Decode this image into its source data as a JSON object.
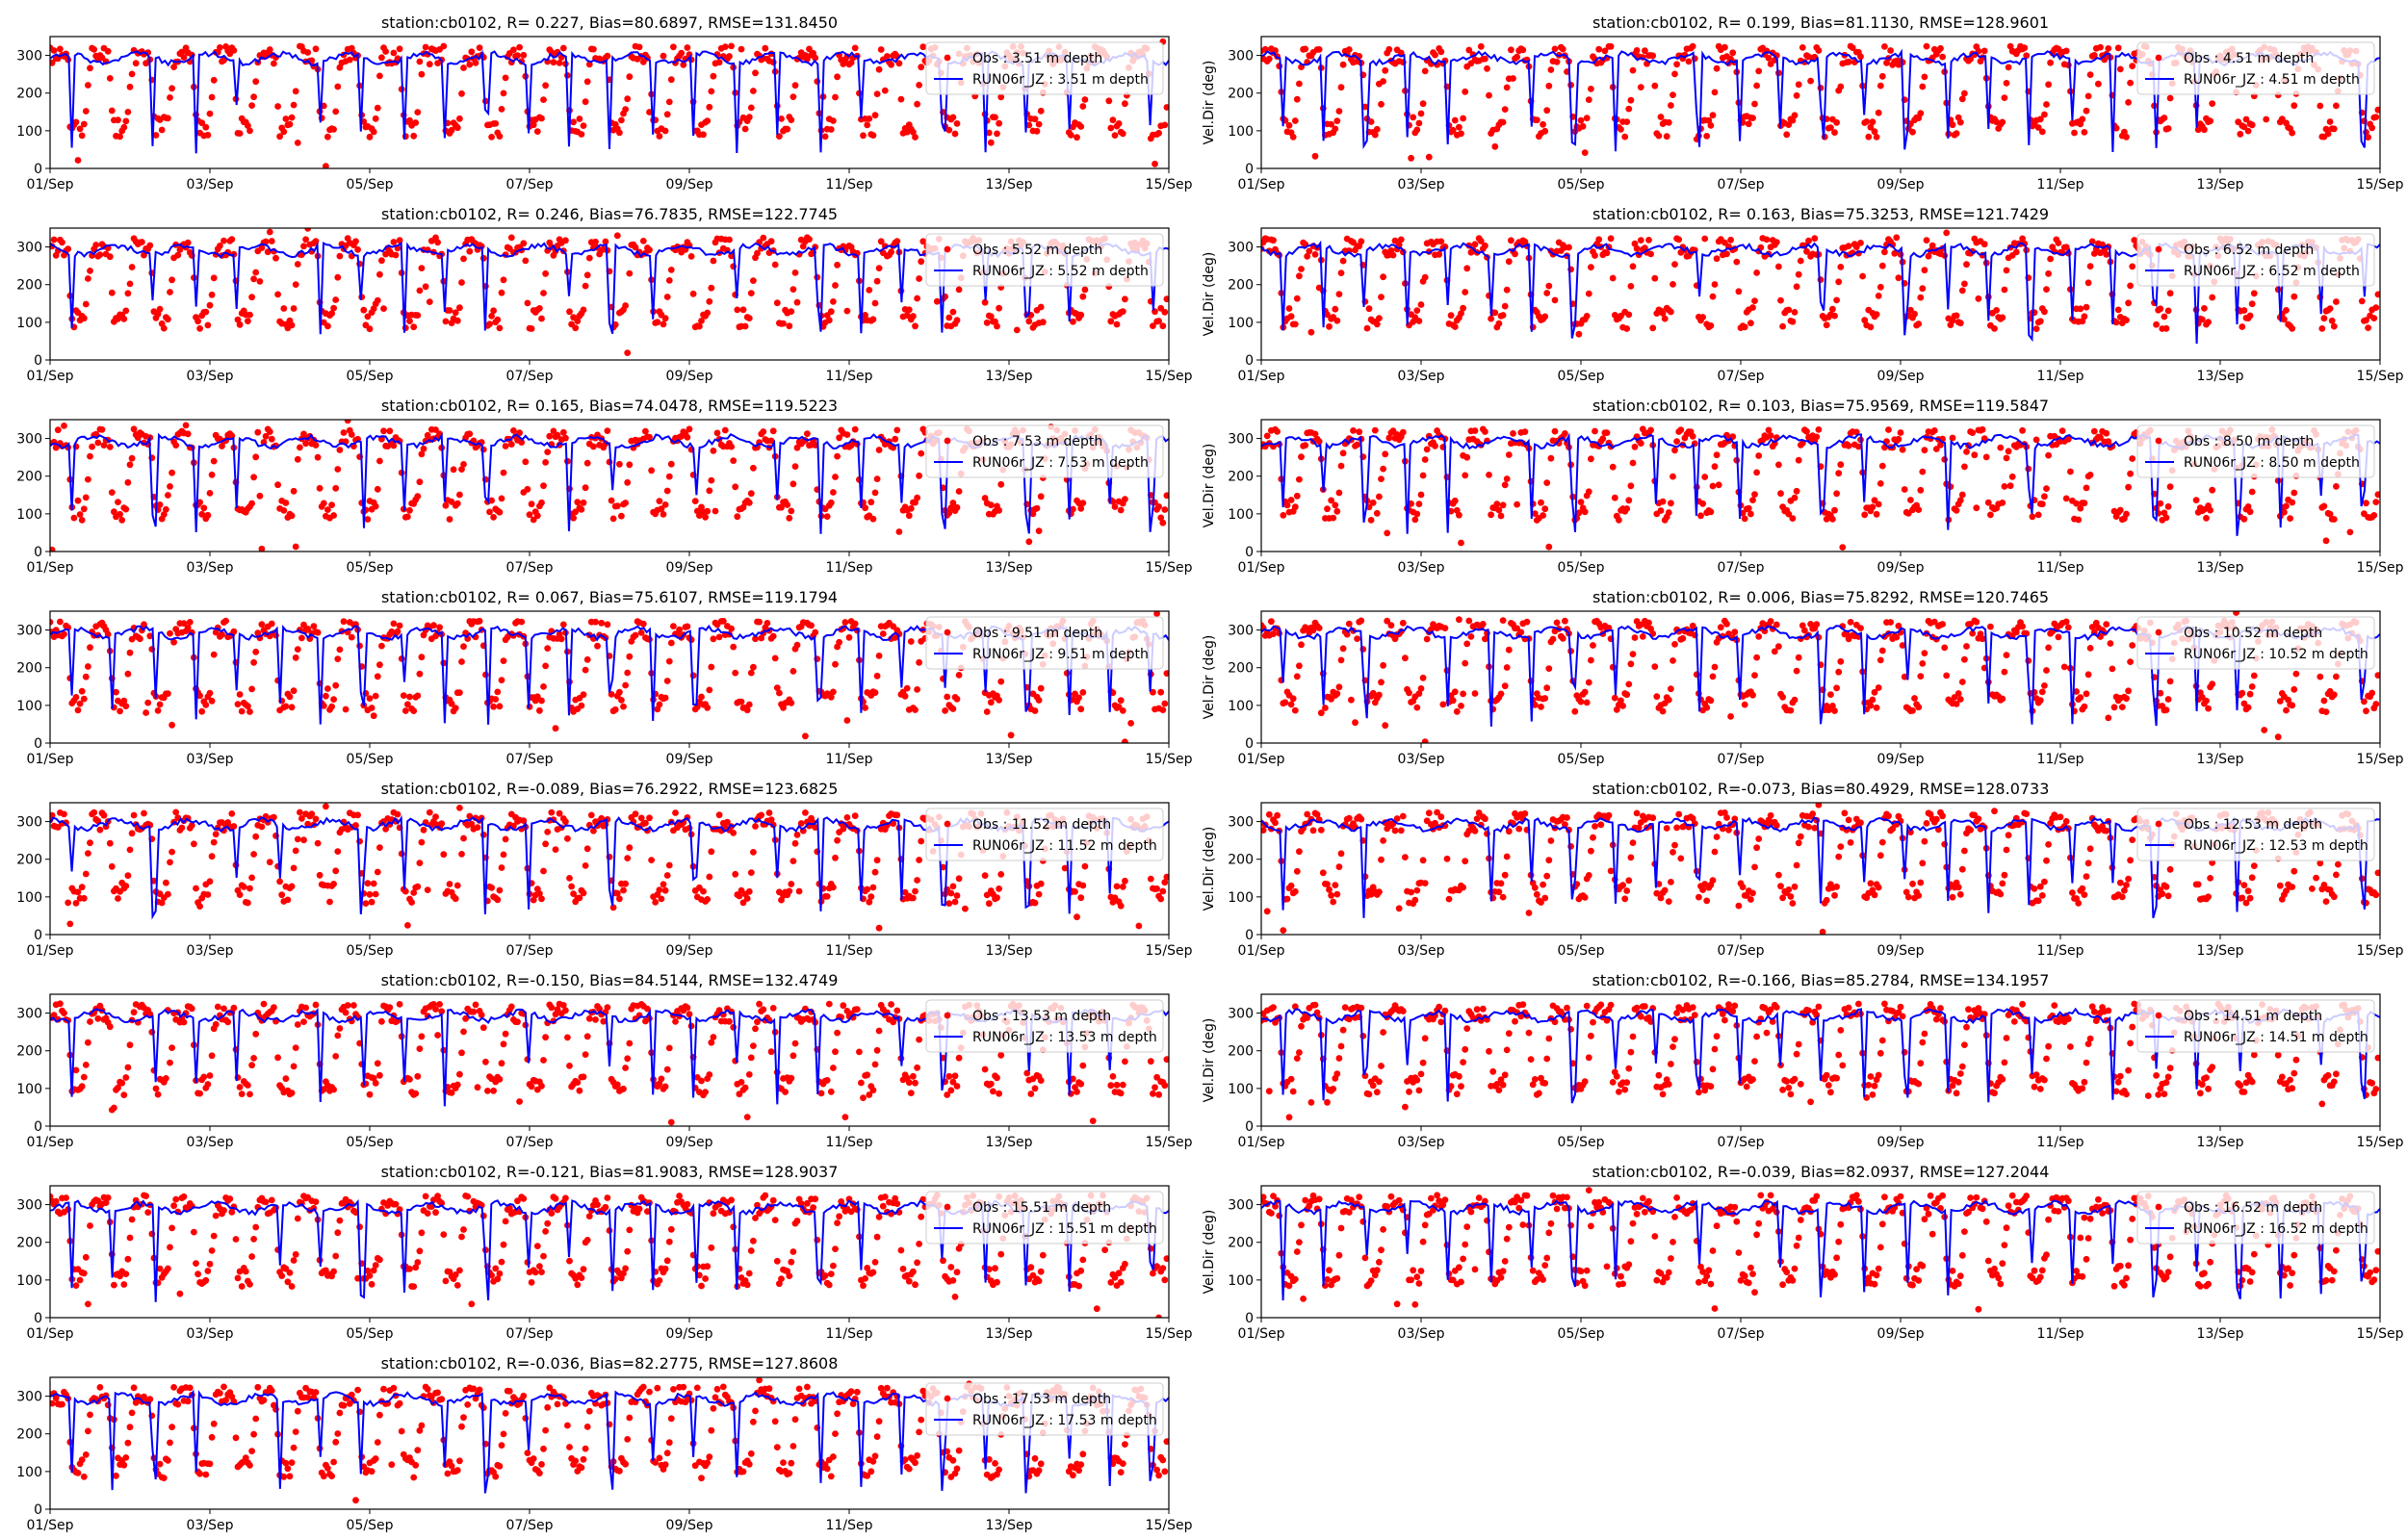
{
  "figure": {
    "ylabel_text": "Vel.Dir (deg)"
  },
  "colors": {
    "obs": "#ff0000",
    "model": "#0000ff",
    "axis": "#000000",
    "legend_border": "#cccccc"
  },
  "chart_data": [
    {
      "type": "line+scatter",
      "title": "station:cb0102, R= 0.227, Bias=80.6897, RMSE=131.8450",
      "xlabel": "",
      "ylabel": "",
      "xlim": [
        "01/Sep",
        "15/Sep"
      ],
      "ylim": [
        0,
        350
      ],
      "x_ticks": [
        "01/Sep",
        "03/Sep",
        "05/Sep",
        "07/Sep",
        "09/Sep",
        "11/Sep",
        "13/Sep",
        "15/Sep"
      ],
      "y_ticks": [
        0,
        100,
        200,
        300
      ],
      "legend": {
        "placement": "top-right",
        "entries": [
          "Obs : 3.51 m depth",
          "RUN06r_JZ : 3.51 m depth"
        ]
      },
      "grid": false,
      "seed": 11
    },
    {
      "type": "line+scatter",
      "title": "station:cb0102, R= 0.199, Bias=81.1130, RMSE=128.9601",
      "xlabel": "",
      "ylabel": "Vel.Dir (deg)",
      "xlim": [
        "01/Sep",
        "15/Sep"
      ],
      "ylim": [
        0,
        350
      ],
      "x_ticks": [
        "01/Sep",
        "03/Sep",
        "05/Sep",
        "07/Sep",
        "09/Sep",
        "11/Sep",
        "13/Sep",
        "15/Sep"
      ],
      "y_ticks": [
        0,
        100,
        200,
        300
      ],
      "legend": {
        "placement": "top-right",
        "entries": [
          "Obs : 4.51 m depth",
          "RUN06r_JZ : 4.51 m depth"
        ]
      },
      "grid": false,
      "seed": 12
    },
    {
      "type": "line+scatter",
      "title": "station:cb0102, R= 0.246, Bias=76.7835, RMSE=122.7745",
      "xlabel": "",
      "ylabel": "",
      "xlim": [
        "01/Sep",
        "15/Sep"
      ],
      "ylim": [
        0,
        350
      ],
      "x_ticks": [
        "01/Sep",
        "03/Sep",
        "05/Sep",
        "07/Sep",
        "09/Sep",
        "11/Sep",
        "13/Sep",
        "15/Sep"
      ],
      "y_ticks": [
        0,
        100,
        200,
        300
      ],
      "legend": {
        "placement": "top-right",
        "entries": [
          "Obs : 5.52 m depth",
          "RUN06r_JZ : 5.52 m depth"
        ]
      },
      "grid": false,
      "seed": 13
    },
    {
      "type": "line+scatter",
      "title": "station:cb0102, R= 0.163, Bias=75.3253, RMSE=121.7429",
      "xlabel": "",
      "ylabel": "Vel.Dir (deg)",
      "xlim": [
        "01/Sep",
        "15/Sep"
      ],
      "ylim": [
        0,
        350
      ],
      "x_ticks": [
        "01/Sep",
        "03/Sep",
        "05/Sep",
        "07/Sep",
        "09/Sep",
        "11/Sep",
        "13/Sep",
        "15/Sep"
      ],
      "y_ticks": [
        0,
        100,
        200,
        300
      ],
      "legend": {
        "placement": "top-right",
        "entries": [
          "Obs : 6.52 m depth",
          "RUN06r_JZ : 6.52 m depth"
        ]
      },
      "grid": false,
      "seed": 14
    },
    {
      "type": "line+scatter",
      "title": "station:cb0102, R= 0.165, Bias=74.0478, RMSE=119.5223",
      "xlabel": "",
      "ylabel": "",
      "xlim": [
        "01/Sep",
        "15/Sep"
      ],
      "ylim": [
        0,
        350
      ],
      "x_ticks": [
        "01/Sep",
        "03/Sep",
        "05/Sep",
        "07/Sep",
        "09/Sep",
        "11/Sep",
        "13/Sep",
        "15/Sep"
      ],
      "y_ticks": [
        0,
        100,
        200,
        300
      ],
      "legend": {
        "placement": "top-right",
        "entries": [
          "Obs : 7.53 m depth",
          "RUN06r_JZ : 7.53 m depth"
        ]
      },
      "grid": false,
      "seed": 15
    },
    {
      "type": "line+scatter",
      "title": "station:cb0102, R= 0.103, Bias=75.9569, RMSE=119.5847",
      "xlabel": "",
      "ylabel": "Vel.Dir (deg)",
      "xlim": [
        "01/Sep",
        "15/Sep"
      ],
      "ylim": [
        0,
        350
      ],
      "x_ticks": [
        "01/Sep",
        "03/Sep",
        "05/Sep",
        "07/Sep",
        "09/Sep",
        "11/Sep",
        "13/Sep",
        "15/Sep"
      ],
      "y_ticks": [
        0,
        100,
        200,
        300
      ],
      "legend": {
        "placement": "top-right",
        "entries": [
          "Obs : 8.50 m depth",
          "RUN06r_JZ : 8.50 m depth"
        ]
      },
      "grid": false,
      "seed": 16
    },
    {
      "type": "line+scatter",
      "title": "station:cb0102, R= 0.067, Bias=75.6107, RMSE=119.1794",
      "xlabel": "",
      "ylabel": "",
      "xlim": [
        "01/Sep",
        "15/Sep"
      ],
      "ylim": [
        0,
        350
      ],
      "x_ticks": [
        "01/Sep",
        "03/Sep",
        "05/Sep",
        "07/Sep",
        "09/Sep",
        "11/Sep",
        "13/Sep",
        "15/Sep"
      ],
      "y_ticks": [
        0,
        100,
        200,
        300
      ],
      "legend": {
        "placement": "top-right",
        "entries": [
          "Obs : 9.51 m depth",
          "RUN06r_JZ : 9.51 m depth"
        ]
      },
      "grid": false,
      "seed": 17
    },
    {
      "type": "line+scatter",
      "title": "station:cb0102, R= 0.006, Bias=75.8292, RMSE=120.7465",
      "xlabel": "",
      "ylabel": "Vel.Dir (deg)",
      "xlim": [
        "01/Sep",
        "15/Sep"
      ],
      "ylim": [
        0,
        350
      ],
      "x_ticks": [
        "01/Sep",
        "03/Sep",
        "05/Sep",
        "07/Sep",
        "09/Sep",
        "11/Sep",
        "13/Sep",
        "15/Sep"
      ],
      "y_ticks": [
        0,
        100,
        200,
        300
      ],
      "legend": {
        "placement": "top-right",
        "entries": [
          "Obs : 10.52 m depth",
          "RUN06r_JZ : 10.52 m depth"
        ]
      },
      "grid": false,
      "seed": 18
    },
    {
      "type": "line+scatter",
      "title": "station:cb0102, R=-0.089, Bias=76.2922, RMSE=123.6825",
      "xlabel": "",
      "ylabel": "",
      "xlim": [
        "01/Sep",
        "15/Sep"
      ],
      "ylim": [
        0,
        350
      ],
      "x_ticks": [
        "01/Sep",
        "03/Sep",
        "05/Sep",
        "07/Sep",
        "09/Sep",
        "11/Sep",
        "13/Sep",
        "15/Sep"
      ],
      "y_ticks": [
        0,
        100,
        200,
        300
      ],
      "legend": {
        "placement": "top-right",
        "entries": [
          "Obs : 11.52 m depth",
          "RUN06r_JZ : 11.52 m depth"
        ]
      },
      "grid": false,
      "seed": 19
    },
    {
      "type": "line+scatter",
      "title": "station:cb0102, R=-0.073, Bias=80.4929, RMSE=128.0733",
      "xlabel": "",
      "ylabel": "Vel.Dir (deg)",
      "xlim": [
        "01/Sep",
        "15/Sep"
      ],
      "ylim": [
        0,
        350
      ],
      "x_ticks": [
        "01/Sep",
        "03/Sep",
        "05/Sep",
        "07/Sep",
        "09/Sep",
        "11/Sep",
        "13/Sep",
        "15/Sep"
      ],
      "y_ticks": [
        0,
        100,
        200,
        300
      ],
      "legend": {
        "placement": "top-right",
        "entries": [
          "Obs : 12.53 m depth",
          "RUN06r_JZ : 12.53 m depth"
        ]
      },
      "grid": false,
      "seed": 20
    },
    {
      "type": "line+scatter",
      "title": "station:cb0102, R=-0.150, Bias=84.5144, RMSE=132.4749",
      "xlabel": "",
      "ylabel": "",
      "xlim": [
        "01/Sep",
        "15/Sep"
      ],
      "ylim": [
        0,
        350
      ],
      "x_ticks": [
        "01/Sep",
        "03/Sep",
        "05/Sep",
        "07/Sep",
        "09/Sep",
        "11/Sep",
        "13/Sep",
        "15/Sep"
      ],
      "y_ticks": [
        0,
        100,
        200,
        300
      ],
      "legend": {
        "placement": "top-right",
        "entries": [
          "Obs : 13.53 m depth",
          "RUN06r_JZ : 13.53 m depth"
        ]
      },
      "grid": false,
      "seed": 21
    },
    {
      "type": "line+scatter",
      "title": "station:cb0102, R=-0.166, Bias=85.2784, RMSE=134.1957",
      "xlabel": "",
      "ylabel": "Vel.Dir (deg)",
      "xlim": [
        "01/Sep",
        "15/Sep"
      ],
      "ylim": [
        0,
        350
      ],
      "x_ticks": [
        "01/Sep",
        "03/Sep",
        "05/Sep",
        "07/Sep",
        "09/Sep",
        "11/Sep",
        "13/Sep",
        "15/Sep"
      ],
      "y_ticks": [
        0,
        100,
        200,
        300
      ],
      "legend": {
        "placement": "top-right",
        "entries": [
          "Obs : 14.51 m depth",
          "RUN06r_JZ : 14.51 m depth"
        ]
      },
      "grid": false,
      "seed": 22
    },
    {
      "type": "line+scatter",
      "title": "station:cb0102, R=-0.121, Bias=81.9083, RMSE=128.9037",
      "xlabel": "",
      "ylabel": "",
      "xlim": [
        "01/Sep",
        "15/Sep"
      ],
      "ylim": [
        0,
        350
      ],
      "x_ticks": [
        "01/Sep",
        "03/Sep",
        "05/Sep",
        "07/Sep",
        "09/Sep",
        "11/Sep",
        "13/Sep",
        "15/Sep"
      ],
      "y_ticks": [
        0,
        100,
        200,
        300
      ],
      "legend": {
        "placement": "top-right",
        "entries": [
          "Obs : 15.51 m depth",
          "RUN06r_JZ : 15.51 m depth"
        ]
      },
      "grid": false,
      "seed": 23
    },
    {
      "type": "line+scatter",
      "title": "station:cb0102, R=-0.039, Bias=82.0937, RMSE=127.2044",
      "xlabel": "",
      "ylabel": "Vel.Dir (deg)",
      "xlim": [
        "01/Sep",
        "15/Sep"
      ],
      "ylim": [
        0,
        350
      ],
      "x_ticks": [
        "01/Sep",
        "03/Sep",
        "05/Sep",
        "07/Sep",
        "09/Sep",
        "11/Sep",
        "13/Sep",
        "15/Sep"
      ],
      "y_ticks": [
        0,
        100,
        200,
        300
      ],
      "legend": {
        "placement": "top-right",
        "entries": [
          "Obs : 16.52 m depth",
          "RUN06r_JZ : 16.52 m depth"
        ]
      },
      "grid": false,
      "seed": 24
    },
    {
      "type": "line+scatter",
      "title": "station:cb0102, R=-0.036, Bias=82.2775, RMSE=127.8608",
      "xlabel": "",
      "ylabel": "",
      "xlim": [
        "01/Sep",
        "15/Sep"
      ],
      "ylim": [
        0,
        350
      ],
      "x_ticks": [
        "01/Sep",
        "03/Sep",
        "05/Sep",
        "07/Sep",
        "09/Sep",
        "11/Sep",
        "13/Sep",
        "15/Sep"
      ],
      "y_ticks": [
        0,
        100,
        200,
        300
      ],
      "legend": {
        "placement": "top-right",
        "entries": [
          "Obs : 17.53 m depth",
          "RUN06r_JZ : 17.53 m depth"
        ]
      },
      "grid": false,
      "seed": 25
    }
  ]
}
